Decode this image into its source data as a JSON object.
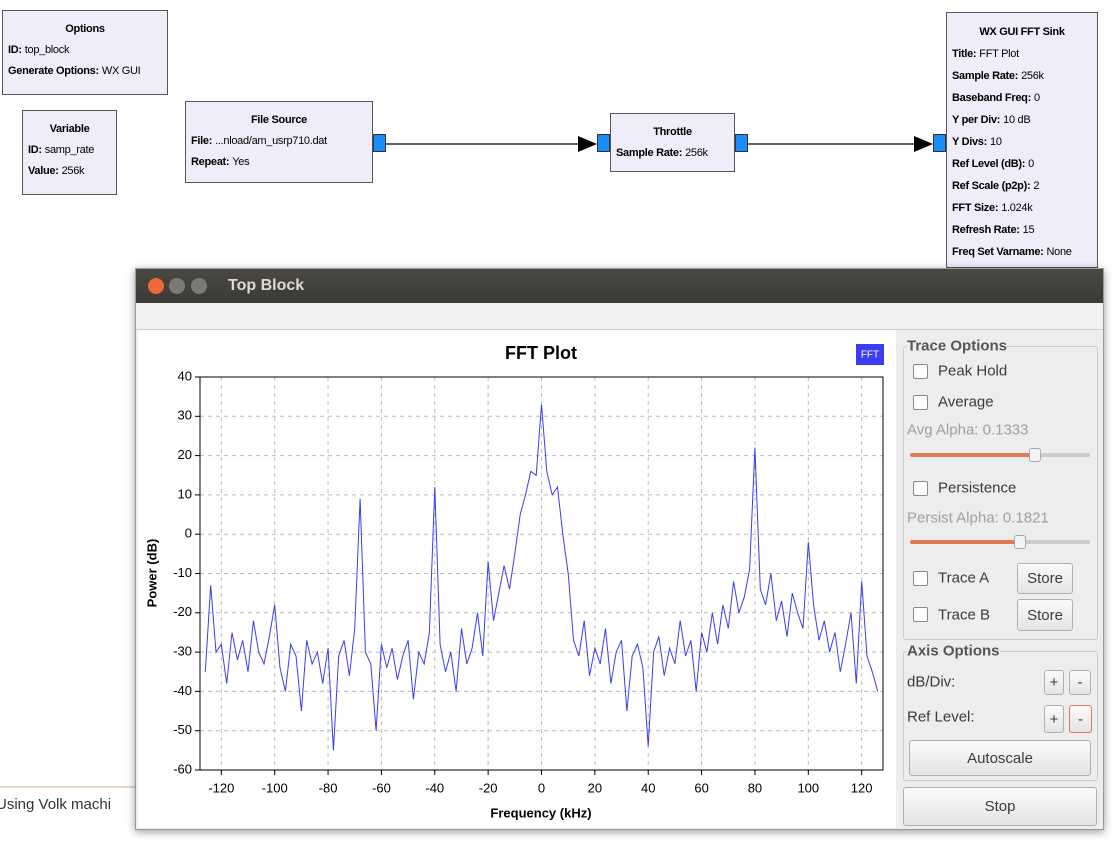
{
  "flowgraph": {
    "blocks": [
      {
        "title": "Options",
        "params": [
          {
            "key": "ID:",
            "value": "top_block"
          },
          {
            "key": "Generate Options:",
            "value": "WX GUI"
          }
        ]
      },
      {
        "title": "Variable",
        "params": [
          {
            "key": "ID:",
            "value": "samp_rate"
          },
          {
            "key": "Value:",
            "value": "256k"
          }
        ]
      },
      {
        "title": "File Source",
        "params": [
          {
            "key": "File:",
            "value": "...nload/am_usrp710.dat"
          },
          {
            "key": "Repeat:",
            "value": "Yes"
          }
        ]
      },
      {
        "title": "Throttle",
        "params": [
          {
            "key": "Sample Rate:",
            "value": "256k"
          }
        ]
      },
      {
        "title": "WX GUI FFT Sink",
        "params": [
          {
            "key": "Title:",
            "value": "FFT Plot"
          },
          {
            "key": "Sample Rate:",
            "value": "256k"
          },
          {
            "key": "Baseband Freq:",
            "value": "0"
          },
          {
            "key": "Y per Div:",
            "value": "10 dB"
          },
          {
            "key": "Y Divs:",
            "value": "10"
          },
          {
            "key": "Ref Level (dB):",
            "value": "0"
          },
          {
            "key": "Ref Scale (p2p):",
            "value": "2"
          },
          {
            "key": "FFT Size:",
            "value": "1.024k"
          },
          {
            "key": "Refresh Rate:",
            "value": "15"
          },
          {
            "key": "Freq Set Varname:",
            "value": "None"
          }
        ]
      }
    ]
  },
  "status": "Using Volk machi",
  "window": {
    "title": "Top Block"
  },
  "chart_data": {
    "type": "line",
    "title": "FFT Plot",
    "x_label": "Frequency (kHz)",
    "y_label": "Power (dB)",
    "x": [
      -126,
      -124,
      -122,
      -120,
      -118,
      -116,
      -114,
      -112,
      -110,
      -108,
      -106,
      -104,
      -102,
      -100,
      -98,
      -96,
      -94,
      -92,
      -90,
      -88,
      -86,
      -84,
      -82,
      -80,
      -78,
      -76,
      -74,
      -72,
      -70,
      -68,
      -66,
      -64,
      -62,
      -60,
      -58,
      -56,
      -54,
      -52,
      -50,
      -48,
      -46,
      -44,
      -42,
      -40,
      -38,
      -36,
      -34,
      -32,
      -30,
      -28,
      -26,
      -24,
      -22,
      -20,
      -18,
      -16,
      -14,
      -12,
      -10,
      -8,
      -6,
      -4,
      -2,
      0,
      2,
      4,
      6,
      8,
      10,
      12,
      14,
      16,
      18,
      20,
      22,
      24,
      26,
      28,
      30,
      32,
      34,
      36,
      38,
      40,
      42,
      44,
      46,
      48,
      50,
      52,
      54,
      56,
      58,
      60,
      62,
      64,
      66,
      68,
      70,
      72,
      74,
      76,
      78,
      80,
      82,
      84,
      86,
      88,
      90,
      92,
      94,
      96,
      98,
      100,
      102,
      104,
      106,
      108,
      110,
      112,
      114,
      116,
      118,
      120,
      122,
      124,
      126
    ],
    "series": [
      {
        "name": "FFT",
        "color": "#3c3cf0",
        "values": [
          -35,
          -13,
          -30,
          -28,
          -38,
          -25,
          -32,
          -27,
          -35,
          -22,
          -30,
          -33,
          -26,
          -18,
          -34,
          -40,
          -28,
          -31,
          -45,
          -27,
          -33,
          -30,
          -38,
          -29,
          -55,
          -31,
          -27,
          -36,
          -24,
          9,
          -30,
          -33,
          -50,
          -28,
          -34,
          -29,
          -37,
          -31,
          -27,
          -42,
          -30,
          -33,
          -25,
          12,
          -28,
          -35,
          -30,
          -40,
          -24,
          -33,
          -29,
          -20,
          -31,
          -7,
          -22,
          -15,
          -8,
          -14,
          -5,
          5,
          10,
          16,
          15,
          33,
          16,
          10,
          12,
          0,
          -10,
          -27,
          -31,
          -22,
          -36,
          -29,
          -33,
          -24,
          -38,
          -30,
          -27,
          -45,
          -31,
          -28,
          -34,
          -54,
          -30,
          -26,
          -36,
          -29,
          -33,
          -22,
          -31,
          -27,
          -40,
          -25,
          -30,
          -20,
          -28,
          -18,
          -24,
          -12,
          -20,
          -16,
          -9,
          22,
          -14,
          -18,
          -10,
          -22,
          -17,
          -26,
          -15,
          -20,
          -24,
          -2,
          -18,
          -27,
          -22,
          -30,
          -25,
          -35,
          -28,
          -20,
          -38,
          -12,
          -31,
          -35,
          -40
        ]
      }
    ],
    "xlim": [
      -128,
      128
    ],
    "xticks": [
      -120,
      -100,
      -80,
      -60,
      -40,
      -20,
      0,
      20,
      40,
      60,
      80,
      100,
      120
    ],
    "ylim": [
      -60,
      40
    ],
    "yticks": [
      -60,
      -50,
      -40,
      -30,
      -20,
      -10,
      0,
      10,
      20,
      30,
      40
    ],
    "grid": true
  },
  "controls": {
    "trace_options": {
      "title": "Trace Options",
      "peak_hold": "Peak Hold",
      "average": "Average",
      "avg_alpha": "Avg Alpha: 0.1333",
      "persistence": "Persistence",
      "persist_alpha": "Persist Alpha: 0.1821",
      "trace_a": "Trace A",
      "store_a": "Store",
      "trace_b": "Trace B",
      "store_b": "Store"
    },
    "axis_options": {
      "title": "Axis Options",
      "db_div": "dB/Div:",
      "db_plus": "+",
      "db_minus": "-",
      "ref_level": "Ref Level:",
      "ref_plus": "+",
      "ref_minus": "-",
      "autoscale": "Autoscale"
    },
    "stop": "Stop"
  }
}
